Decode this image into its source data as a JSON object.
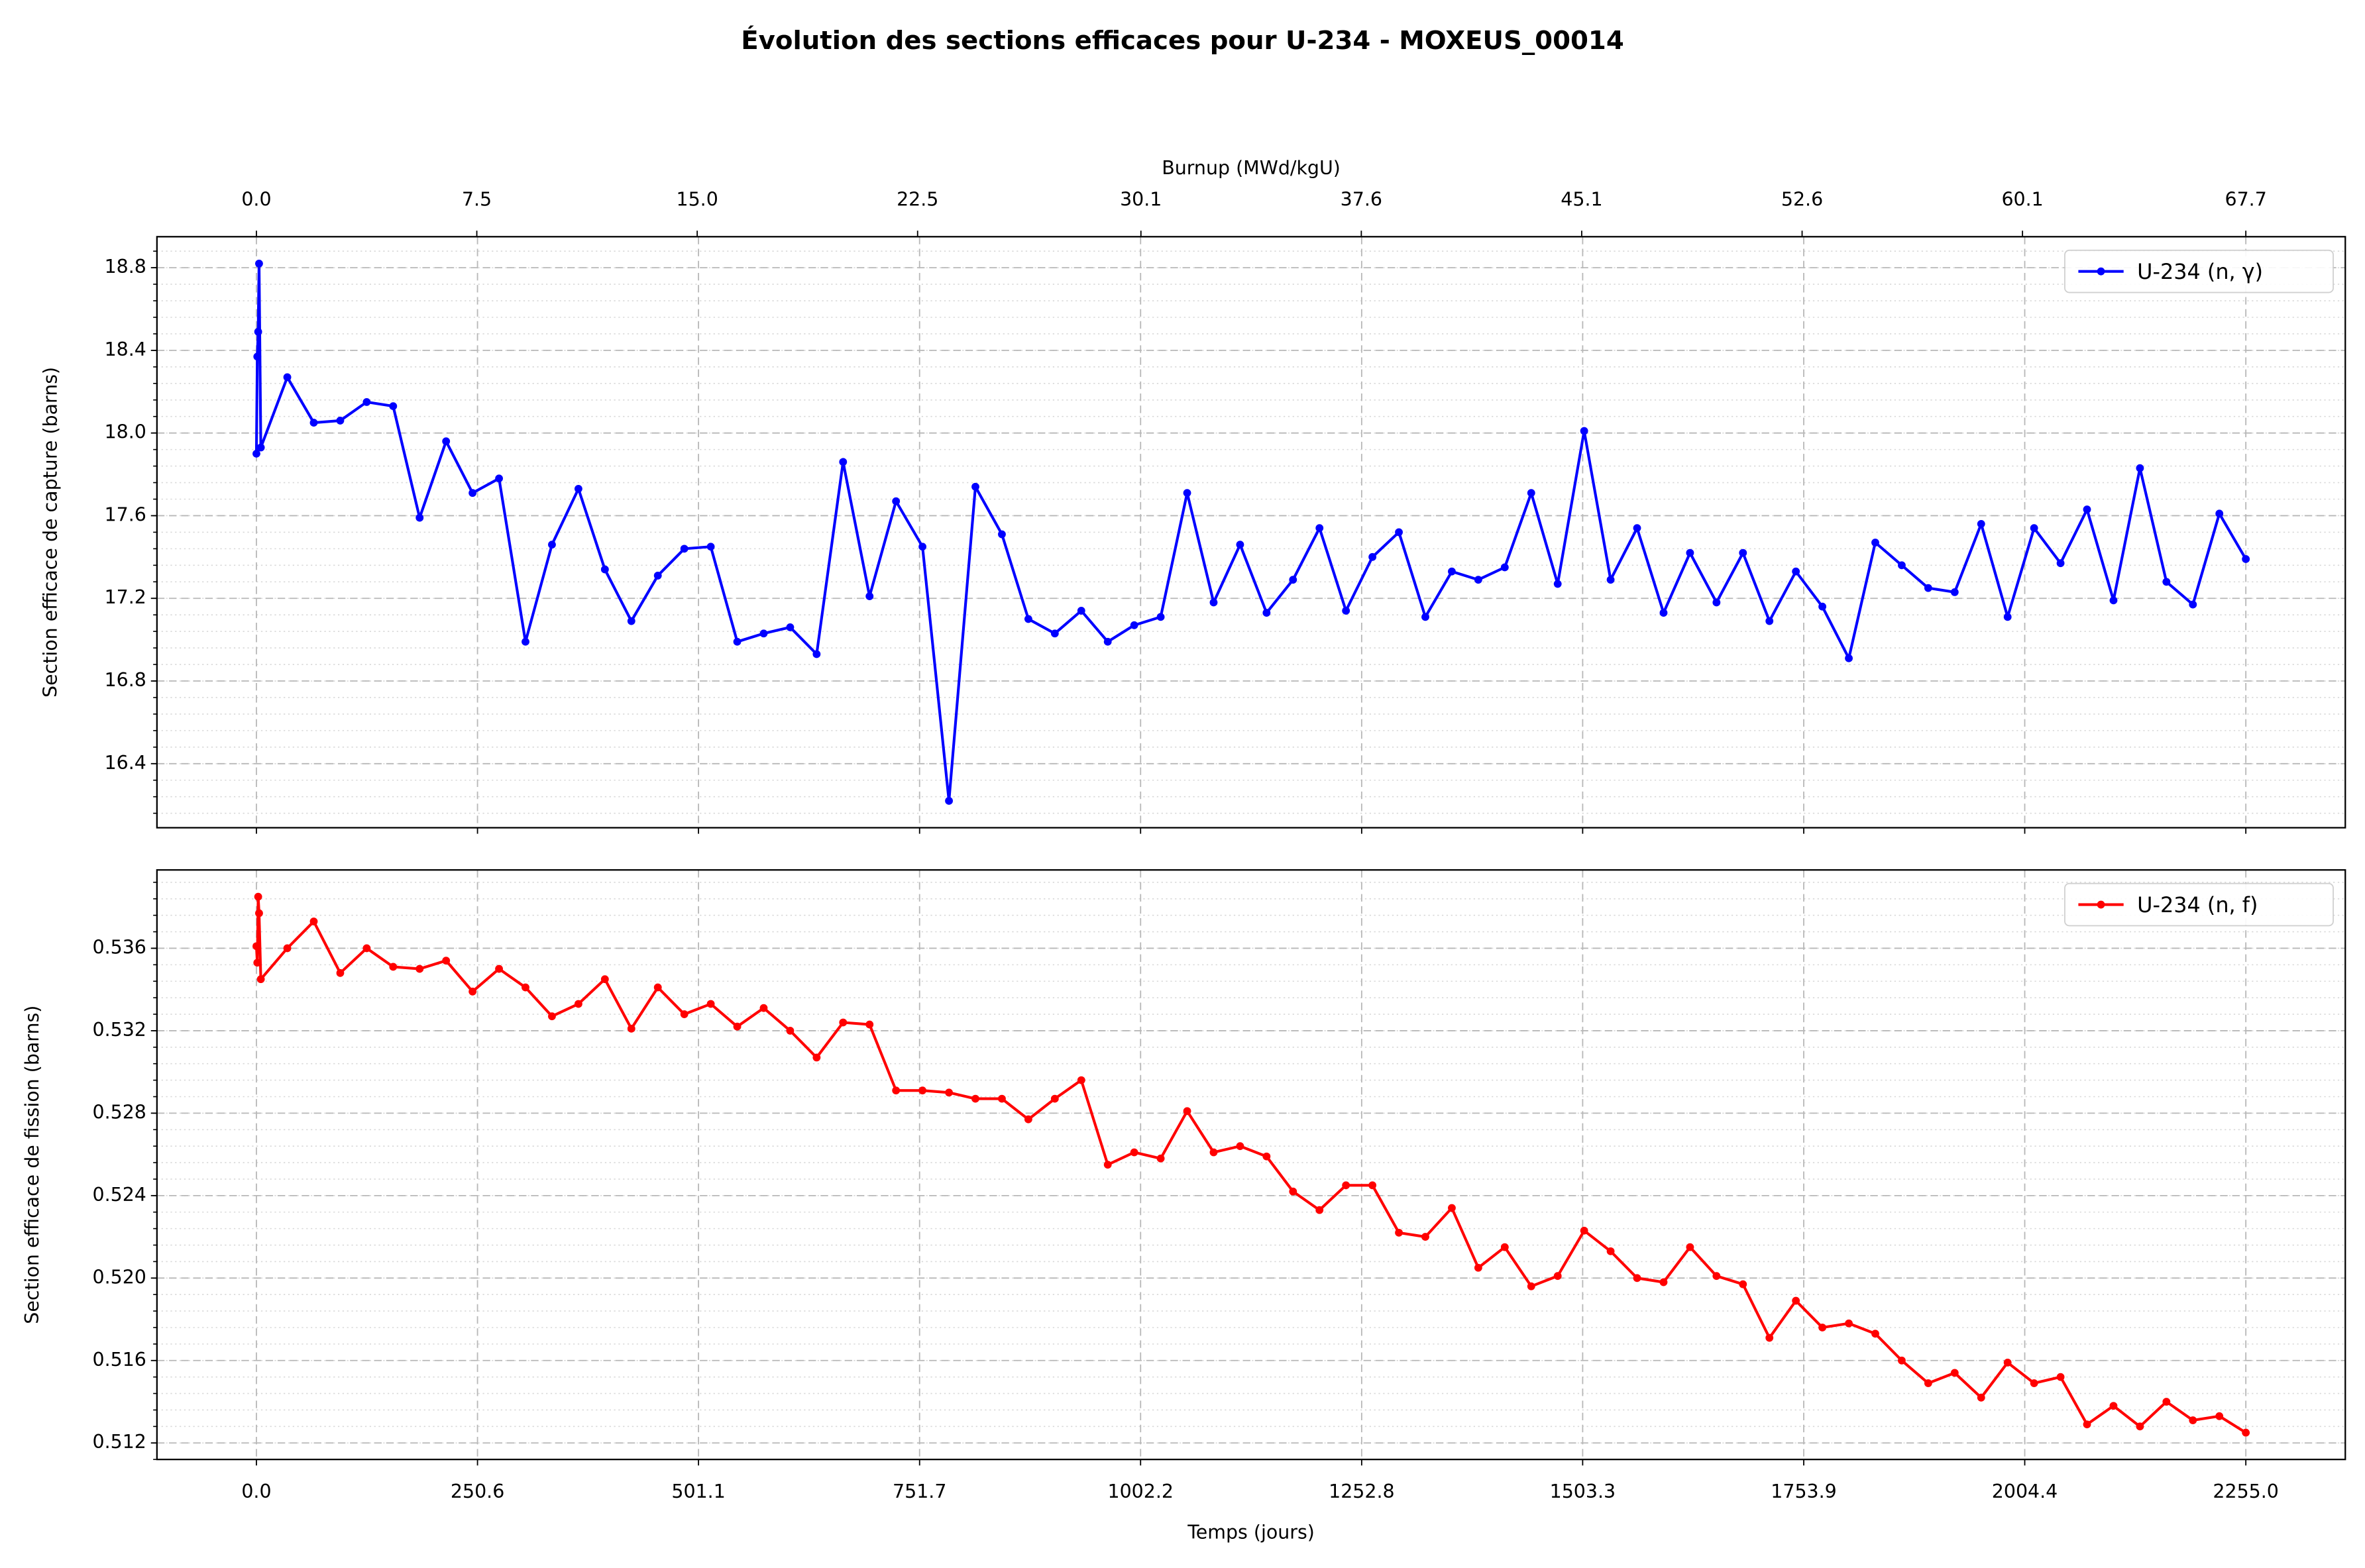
{
  "title": "Évolution des sections efficaces pour U-234 - MOXEUS_00014",
  "chart_data": [
    {
      "type": "line",
      "ylabel": "Section efficace de capture (barns)",
      "x2label": "Burnup (MWd/kgU)",
      "x": [
        0,
        1,
        2,
        3,
        5,
        35,
        65,
        95,
        125,
        155,
        185,
        215,
        245,
        275,
        305,
        335,
        365,
        395,
        425,
        455,
        485,
        515,
        545,
        575,
        605,
        635,
        665,
        695,
        725,
        755,
        785,
        815,
        845,
        875,
        905,
        935,
        965,
        995,
        1025,
        1055,
        1085,
        1115,
        1145,
        1175,
        1205,
        1235,
        1265,
        1295,
        1325,
        1355,
        1385,
        1415,
        1445,
        1475,
        1505,
        1535,
        1565,
        1595,
        1625,
        1655,
        1685,
        1715,
        1745,
        1775,
        1805,
        1835,
        1865,
        1895,
        1925,
        1955,
        1985,
        2015,
        2045,
        2075,
        2105,
        2135,
        2165,
        2195,
        2225,
        2255
      ],
      "xlim": [
        -112.75,
        2367.75
      ],
      "x2lim": [
        -3.385,
        71.085
      ],
      "x2ticks": [
        {
          "value": 0,
          "label": "0.0"
        },
        7.5,
        {
          "value": 15,
          "label": "15.0"
        },
        22.5,
        30.1,
        37.6,
        45.1,
        52.6,
        60.1,
        67.7
      ],
      "ylim": [
        16.09,
        18.95
      ],
      "yticks": [
        16.4,
        16.8,
        17.2,
        17.6,
        {
          "value": 18,
          "label": "18.0"
        },
        18.4,
        18.8
      ],
      "minor_divisions": 5,
      "grid": true,
      "legend": "upper right",
      "series": [
        {
          "name": "U-234 (n, γ)",
          "color": "#0000ff",
          "values": [
            17.9,
            18.37,
            18.49,
            18.82,
            17.93,
            18.27,
            18.05,
            18.06,
            18.15,
            18.13,
            17.59,
            17.96,
            17.71,
            17.78,
            16.99,
            17.46,
            17.73,
            17.34,
            17.09,
            17.31,
            17.44,
            17.45,
            16.99,
            17.03,
            17.06,
            16.93,
            17.86,
            17.21,
            17.67,
            17.45,
            16.22,
            17.74,
            17.51,
            17.1,
            17.03,
            17.14,
            16.99,
            17.07,
            17.11,
            17.71,
            17.18,
            17.46,
            17.13,
            17.29,
            17.54,
            17.14,
            17.4,
            17.52,
            17.11,
            17.33,
            17.29,
            17.35,
            17.71,
            17.27,
            18.01,
            17.29,
            17.54,
            17.13,
            17.42,
            17.18,
            17.42,
            17.09,
            17.33,
            17.16,
            16.91,
            17.47,
            17.36,
            17.25,
            17.23,
            17.56,
            17.11,
            17.54,
            17.37,
            17.63,
            17.19,
            17.83,
            17.28,
            17.17,
            17.61,
            17.39
          ]
        }
      ]
    },
    {
      "type": "line",
      "ylabel": "Section efficace de fission (barns)",
      "xlabel": "Temps (jours)",
      "x": [
        0,
        1,
        2,
        3,
        5,
        35,
        65,
        95,
        125,
        155,
        185,
        215,
        245,
        275,
        305,
        335,
        365,
        395,
        425,
        455,
        485,
        515,
        545,
        575,
        605,
        635,
        665,
        695,
        725,
        755,
        785,
        815,
        845,
        875,
        905,
        935,
        965,
        995,
        1025,
        1055,
        1085,
        1115,
        1145,
        1175,
        1205,
        1235,
        1265,
        1295,
        1325,
        1355,
        1385,
        1415,
        1445,
        1475,
        1505,
        1535,
        1565,
        1595,
        1625,
        1655,
        1685,
        1715,
        1745,
        1775,
        1805,
        1835,
        1865,
        1895,
        1925,
        1955,
        1985,
        2015,
        2045,
        2075,
        2105,
        2135,
        2165,
        2195,
        2225,
        2255
      ],
      "xlim": [
        -112.75,
        2367.75
      ],
      "xticks": [
        {
          "value": 0,
          "label": "0.0"
        },
        250.6,
        501.1,
        751.7,
        1002.2,
        1252.8,
        1503.3,
        1753.9,
        2004.4,
        {
          "value": 2255,
          "label": "2255.0"
        }
      ],
      "ylim": [
        0.5112,
        0.5398
      ],
      "yticks": [
        0.512,
        0.516,
        {
          "value": 0.52,
          "label": "0.520"
        },
        0.524,
        0.528,
        0.532,
        0.536
      ],
      "minor_divisions": 5,
      "grid": true,
      "legend": "upper right",
      "series": [
        {
          "name": "U-234 (n, f)",
          "color": "#ff0000",
          "values": [
            0.5361,
            0.5353,
            0.5385,
            0.5377,
            0.5345,
            0.536,
            0.5373,
            0.5348,
            0.536,
            0.5351,
            0.535,
            0.5354,
            0.5339,
            0.535,
            0.5341,
            0.5327,
            0.5333,
            0.5345,
            0.5321,
            0.5341,
            0.5328,
            0.5333,
            0.5322,
            0.5331,
            0.532,
            0.5307,
            0.5324,
            0.5323,
            0.5291,
            0.5291,
            0.529,
            0.5287,
            0.5287,
            0.5277,
            0.5287,
            0.5296,
            0.5255,
            0.5261,
            0.5258,
            0.5281,
            0.5261,
            0.5264,
            0.5259,
            0.5242,
            0.5233,
            0.5245,
            0.5245,
            0.5222,
            0.522,
            0.5234,
            0.5205,
            0.5215,
            0.5196,
            0.5201,
            0.5223,
            0.5213,
            0.52,
            0.5198,
            0.5215,
            0.5201,
            0.5197,
            0.5171,
            0.5189,
            0.5176,
            0.5178,
            0.5173,
            0.516,
            0.5149,
            0.5154,
            0.5142,
            0.5159,
            0.5149,
            0.5152,
            0.5129,
            0.5138,
            0.5128,
            0.514,
            0.5131,
            0.5133,
            0.5125
          ]
        }
      ]
    }
  ]
}
